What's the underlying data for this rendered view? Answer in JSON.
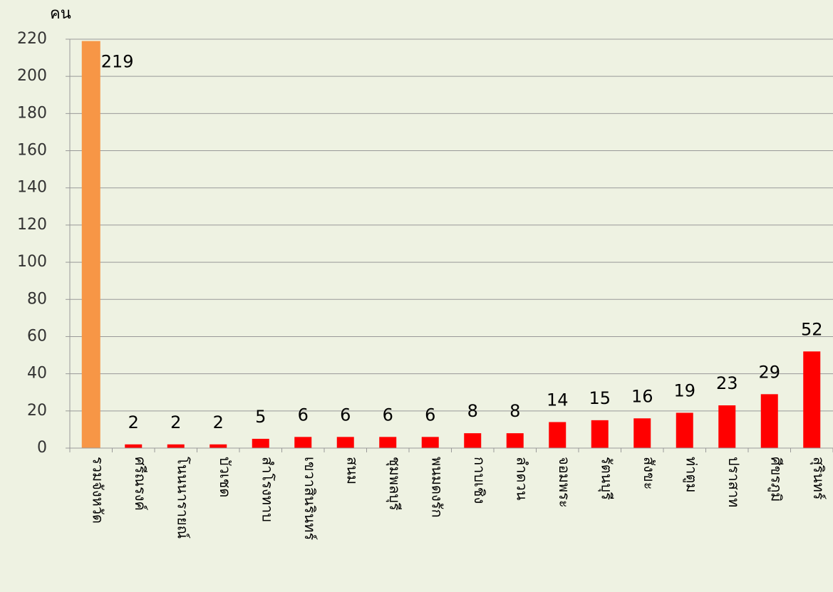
{
  "chart_data": {
    "type": "bar",
    "y_label": "คน",
    "categories": [
      "รวมจังหวัด",
      "ศรีณรงค์",
      "โนนนารายณ์",
      "บัวเชด",
      "สำโรงทาบ",
      "เขวาสินรินทร์",
      "สนม",
      "ชุมพลบุรี",
      "พนมดงรัก",
      "กาบเชิง",
      "ลำดวน",
      "จอมพระ",
      "รัตนบุรี",
      "สังขะ",
      "ท่าตูม",
      "ปราสาท",
      "ศีขรภูมิ",
      "สุรินทร์"
    ],
    "values": [
      219,
      2,
      2,
      2,
      5,
      6,
      6,
      6,
      6,
      8,
      8,
      14,
      15,
      16,
      19,
      23,
      29,
      52
    ],
    "colors": [
      "#f79646",
      "#ff0000",
      "#ff0000",
      "#ff0000",
      "#ff0000",
      "#ff0000",
      "#ff0000",
      "#ff0000",
      "#ff0000",
      "#ff0000",
      "#ff0000",
      "#ff0000",
      "#ff0000",
      "#ff0000",
      "#ff0000",
      "#ff0000",
      "#ff0000",
      "#ff0000"
    ],
    "ylim": [
      0,
      220
    ],
    "yticks": [
      0,
      20,
      40,
      60,
      80,
      100,
      120,
      140,
      160,
      180,
      200,
      220
    ],
    "grid": true
  }
}
